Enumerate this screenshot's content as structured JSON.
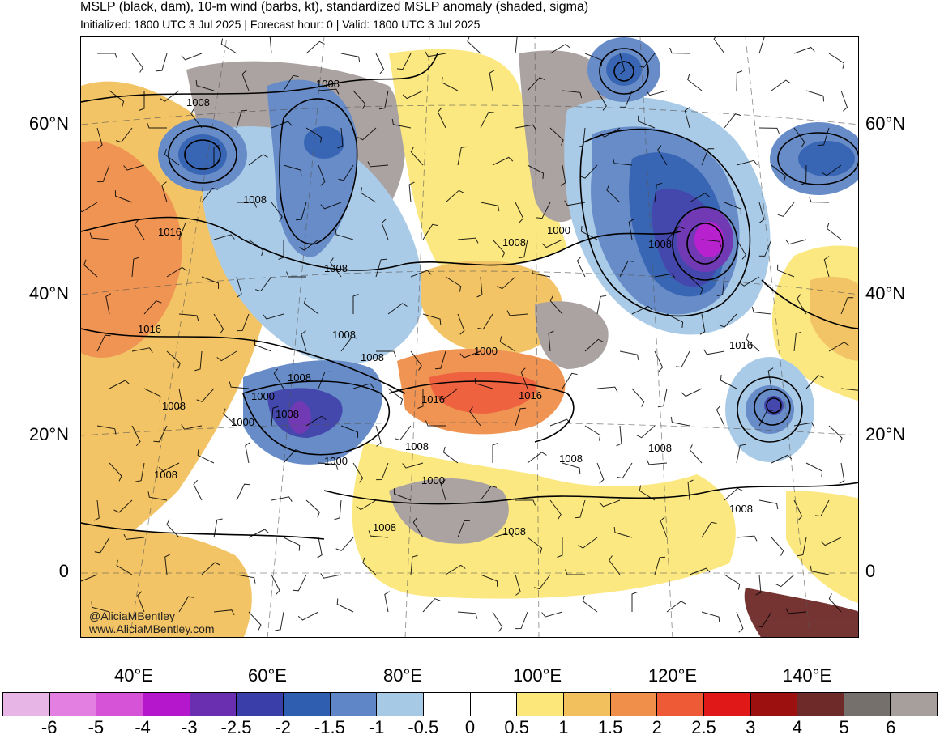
{
  "header": {
    "title": "MSLP (black, dam), 10-m wind (barbs, kt), standardized MSLP anomaly (shaded, sigma)",
    "subtitle": "Initialized: 1800 UTC 3 Jul 2025 | Forecast hour: 0 | Valid: 1800 UTC 3 Jul 2025"
  },
  "map": {
    "lat_labels_left": [
      "60°N",
      "40°N",
      "20°N",
      "0"
    ],
    "lat_labels_right": [
      "60°N",
      "40°N",
      "20°N",
      "0"
    ],
    "lon_labels": [
      "40°E",
      "60°E",
      "80°E",
      "100°E",
      "120°E",
      "140°E"
    ],
    "isobar_labels": [
      "1008",
      "1008",
      "1008",
      "1016",
      "1008",
      "1016",
      "1008",
      "1008",
      "1008",
      "1000",
      "1016",
      "1016",
      "1008",
      "1008",
      "1000",
      "1008",
      "1000",
      "1000",
      "1008",
      "1000",
      "1008",
      "1008",
      "1000",
      "1008",
      "1008",
      "1008",
      "1008",
      "1008",
      "1016"
    ],
    "credits": [
      "@AliciaMBentley",
      "www.AliciaMBentley.com"
    ]
  },
  "colorbar": {
    "labels": [
      "-6",
      "-5",
      "-4",
      "-3",
      "-2.5",
      "-2",
      "-1.5",
      "-1",
      "-0.5",
      "0",
      "0.5",
      "1",
      "1.5",
      "2",
      "2.5",
      "3",
      "4",
      "5",
      "6"
    ],
    "colors": [
      "#e8b6e6",
      "#e27fe0",
      "#d653d8",
      "#b517cc",
      "#6a2fb0",
      "#3a3ea8",
      "#2f5eb0",
      "#5f86c6",
      "#a6c9e6",
      "#ffffff",
      "#ffffff",
      "#fbe77a",
      "#f2c15d",
      "#ef8f4a",
      "#ee5a35",
      "#e01818",
      "#9c1010",
      "#6e2a28",
      "#76706c",
      "#a79f9c"
    ]
  }
}
